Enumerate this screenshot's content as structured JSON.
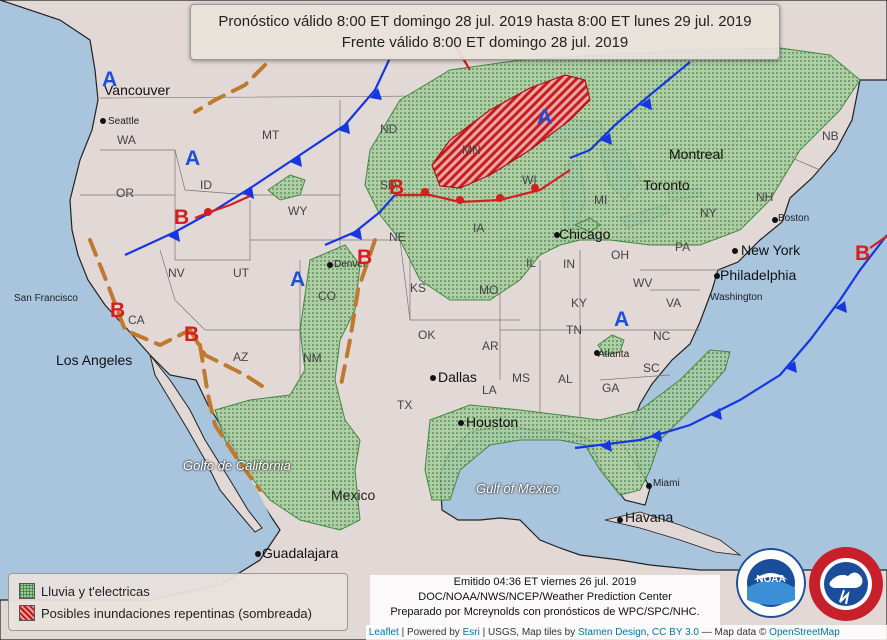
{
  "header": {
    "line1": "Pronóstico válido 8:00 ET domingo 28 jul. 2019 hasta 8:00 ET lunes 29 jul. 2019",
    "line2": "Frente válido 8:00 ET domingo 28 jul. 2019"
  },
  "legend": {
    "rain": "Lluvia y t'electricas",
    "flood": "Posibles inundaciones repentinas (sombreada)"
  },
  "issued": {
    "line1": "Emitido 04:36 ET viernes 26 jul. 2019",
    "line2": "DOC/NOAA/NWS/NCEP/Weather Prediction Center",
    "line3": "Preparado por Mcreynolds con pronósticos de WPC/SPC/NHC."
  },
  "attribution": {
    "leaflet": "Leaflet",
    "powered": " | Powered by ",
    "esri": "Esri",
    "usgs": " | USGS, Map tiles by ",
    "stamen": "Stamen Design",
    "sep": ", ",
    "cc": "CC BY 3.0",
    "mapdata": " — Map data © ",
    "osm": "OpenStreetMap"
  },
  "pressure_centers": {
    "high": "A",
    "low": "B"
  },
  "states": {
    "WA": "WA",
    "OR": "OR",
    "CA": "CA",
    "ID": "ID",
    "NV": "NV",
    "MT": "MT",
    "WY": "WY",
    "UT": "UT",
    "AZ": "AZ",
    "CO": "CO",
    "NM": "NM",
    "ND": "ND",
    "SD": "SD",
    "NE": "NE",
    "KS": "KS",
    "OK": "OK",
    "TX": "TX",
    "MN": "MN",
    "IA": "IA",
    "MO": "MO",
    "AR": "AR",
    "LA": "LA",
    "WI": "WI",
    "IL": "IL",
    "MS": "MS",
    "MI": "MI",
    "IN": "IN",
    "KY": "KY",
    "TN": "TN",
    "AL": "AL",
    "GA": "GA",
    "OH": "OH",
    "WV": "WV",
    "VA": "VA",
    "NC": "NC",
    "SC": "SC",
    "PA": "PA",
    "NY": "NY",
    "NH": "NH",
    "NB": "NB"
  },
  "cities": {
    "vancouver": "Vancouver",
    "seattle": "Seattle",
    "san_francisco": "San Francisco",
    "los_angeles": "Los Angeles",
    "denver": "Denver",
    "dallas": "Dallas",
    "houston": "Houston",
    "chicago": "Chicago",
    "atlanta": "Atlanta",
    "montreal": "Montreal",
    "toronto": "Toronto",
    "boston": "Boston",
    "new_york": "New York",
    "philadelphia": "Philadelphia",
    "washington": "Washington",
    "miami": "Miami",
    "havana": "Havana",
    "guadalajara": "Guadalajara",
    "mexico": "Mexico"
  },
  "seas": {
    "gulf_mexico": "Gulf of Mexico",
    "gulf_california": "Golfo de California"
  },
  "colors": {
    "land": "#e2d8d6",
    "water": "#a9c4dd",
    "rain": "#9ec79a",
    "flood": "#d63a3a",
    "cold_front": "#1637e0",
    "warm_front": "#d61e1e",
    "trough": "#c07a30"
  }
}
